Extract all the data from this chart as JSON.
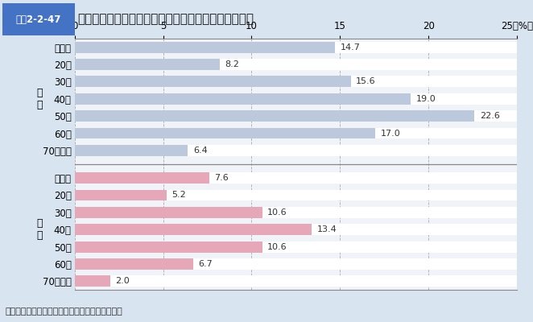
{
  "title": "生活習慣病のリスクを高める飲酒をしている人の割合",
  "title_tag": "図表2-2-47",
  "male_labels": [
    "全年齢",
    "20代",
    "30代",
    "40代",
    "50代",
    "60代",
    "70歳以上"
  ],
  "female_labels": [
    "全年齢",
    "20代",
    "30代",
    "40代",
    "50代",
    "60代",
    "70歳以上"
  ],
  "male_values": [
    14.7,
    8.2,
    15.6,
    19.0,
    22.6,
    17.0,
    6.4
  ],
  "female_values": [
    7.6,
    5.2,
    10.6,
    13.4,
    10.6,
    6.7,
    2.0
  ],
  "male_color": "#bcc8dc",
  "female_color": "#e6a8b8",
  "male_group_label": "男\n性",
  "female_group_label": "女\n性",
  "pct_label": "25（%）",
  "xlim": [
    0,
    25
  ],
  "xticks": [
    0,
    5,
    10,
    15,
    20,
    25
  ],
  "xtick_labels": [
    "0",
    "5",
    "10",
    "15",
    "20",
    "25（%）"
  ],
  "grid_color": "#888888",
  "bg_color": "#d8e4f0",
  "chart_bg_color": "#f0f4f8",
  "bar_bg_color": "#ffffff",
  "source_text": "資料：厚生労働省健康局「国民健康・栄養調査」",
  "bar_height": 0.65,
  "font_size_labels": 8.5,
  "font_size_values": 8,
  "font_size_title": 11,
  "font_size_tag": 8.5,
  "font_size_source": 8,
  "font_size_group": 9
}
